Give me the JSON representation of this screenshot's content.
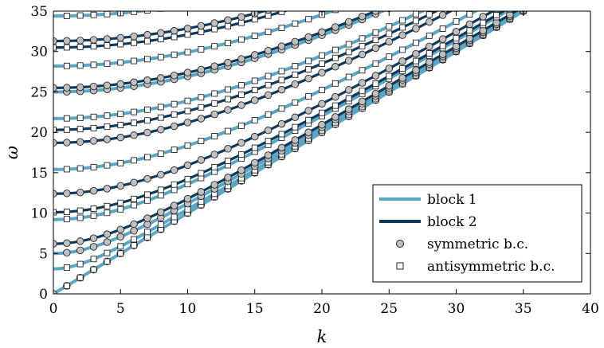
{
  "chart_data": {
    "type": "line",
    "xlabel": "k",
    "ylabel": "ω",
    "xlim": [
      0,
      40
    ],
    "ylim": [
      0,
      35
    ],
    "x_ticks": [
      "0",
      "5",
      "10",
      "15",
      "20",
      "25",
      "30",
      "35",
      "40"
    ],
    "y_ticks": [
      "0",
      "5",
      "10",
      "15",
      "20",
      "25",
      "30",
      "35"
    ],
    "grid": false,
    "legend_position": "bottom-right",
    "legend": {
      "block1": "block 1",
      "block2": "block 2",
      "sym": "symmetric b.c.",
      "antisym": "antisymmetric b.c."
    },
    "colors": {
      "block1": "#5aa6c6",
      "block2": "#0b3a5e",
      "marker_fill": "#c0c0c0",
      "marker_edge": "#222222"
    },
    "series": [
      {
        "block": 2,
        "marker": "circle",
        "w0": 0.0
      },
      {
        "block": 1,
        "marker": "square",
        "w0": 0.0
      },
      {
        "block": 1,
        "marker": "square",
        "w0": 3.1
      },
      {
        "block": 1,
        "marker": "circle",
        "w0": 5.0
      },
      {
        "block": 2,
        "marker": "circle",
        "w0": 6.2
      },
      {
        "block": 1,
        "marker": "square",
        "w0": 9.2
      },
      {
        "block": 2,
        "marker": "square",
        "w0": 10.1
      },
      {
        "block": 2,
        "marker": "circle",
        "w0": 12.4
      },
      {
        "block": 1,
        "marker": "square",
        "w0": 15.4
      },
      {
        "block": 2,
        "marker": "circle",
        "w0": 18.7
      },
      {
        "block": 2,
        "marker": "square",
        "w0": 20.3
      },
      {
        "block": 1,
        "marker": "square",
        "w0": 21.7
      },
      {
        "block": 1,
        "marker": "circle",
        "w0": 25.0
      },
      {
        "block": 2,
        "marker": "circle",
        "w0": 25.5
      },
      {
        "block": 1,
        "marker": "square",
        "w0": 28.2
      },
      {
        "block": 2,
        "marker": "square",
        "w0": 30.5
      },
      {
        "block": 2,
        "marker": "circle",
        "w0": 31.3
      },
      {
        "block": 1,
        "marker": "square",
        "w0": 34.4
      }
    ],
    "k_step": 1,
    "k_max": 40
  }
}
